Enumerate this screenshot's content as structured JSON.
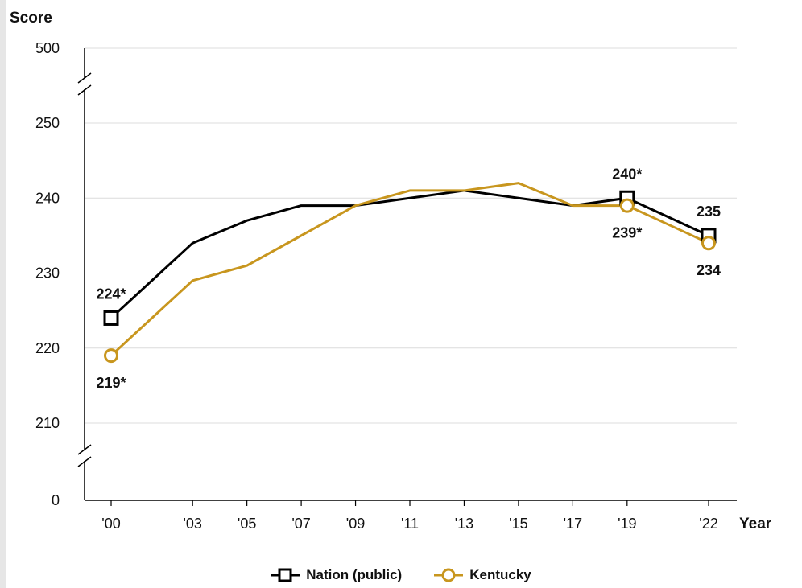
{
  "chart_data": {
    "type": "line",
    "ylabel": "Score",
    "xlabel": "Year",
    "y_ticks": [
      "500",
      "250",
      "240",
      "230",
      "220",
      "210",
      "0"
    ],
    "x_ticks": [
      "'00",
      "'03",
      "'05",
      "'07",
      "'09",
      "'11",
      "'13",
      "'15",
      "'17",
      "'19",
      "'22"
    ],
    "x_years": [
      2000,
      2003,
      2005,
      2007,
      2009,
      2011,
      2013,
      2015,
      2017,
      2019,
      2022
    ],
    "ylim": [
      210,
      250
    ],
    "axis_breaks": [
      "between 250 and 500",
      "between 0 and 210"
    ],
    "grid": true,
    "legend_position": "bottom-center",
    "series": [
      {
        "name": "Nation (public)",
        "color": "#000000",
        "marker": "square",
        "values": [
          224,
          234,
          237,
          239,
          239,
          240,
          241,
          240,
          239,
          240,
          235
        ],
        "labels": [
          {
            "year": 2000,
            "text": "224*"
          },
          {
            "year": 2019,
            "text": "240*"
          },
          {
            "year": 2022,
            "text": "235"
          }
        ]
      },
      {
        "name": "Kentucky",
        "color": "#c8961e",
        "marker": "circle",
        "values": [
          219,
          229,
          231,
          235,
          239,
          241,
          241,
          242,
          239,
          239,
          234
        ],
        "labels": [
          {
            "year": 2000,
            "text": "219*"
          },
          {
            "year": 2019,
            "text": "239*"
          },
          {
            "year": 2022,
            "text": "234"
          }
        ]
      }
    ]
  }
}
